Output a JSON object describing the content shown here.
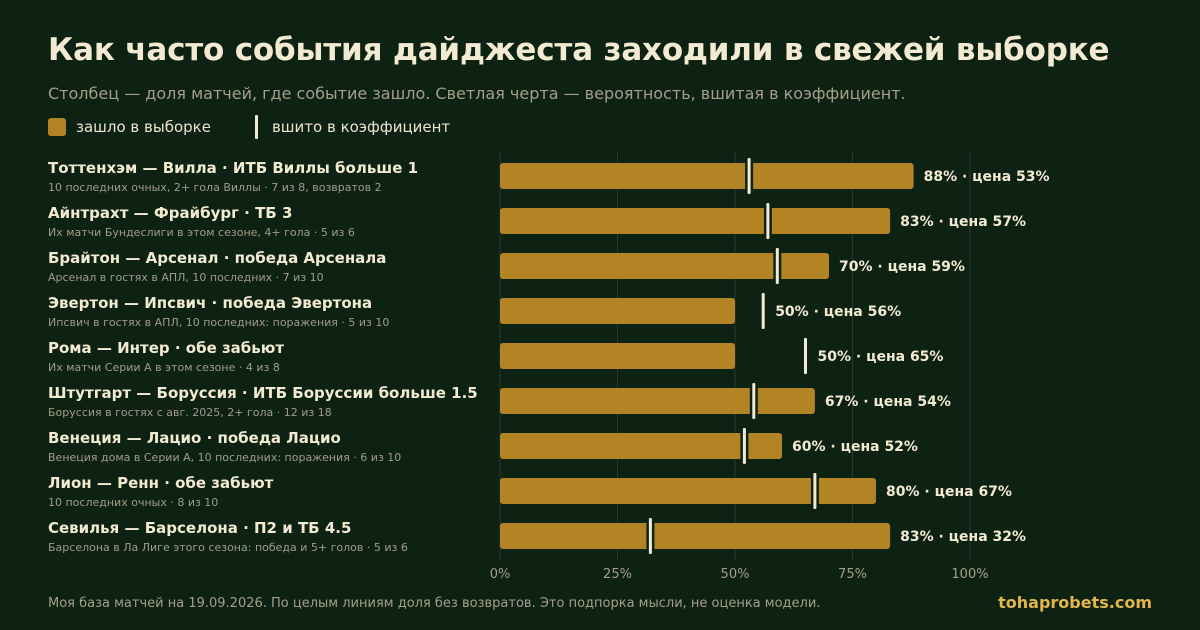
{
  "header": {
    "title": "Как часто события дайджеста заходили в свежей выборке",
    "subtitle": "Столбец — доля матчей, где событие зашло. Светлая черта — вероятность, вшитая в коэффициент."
  },
  "legend": {
    "bar_label": "зашло в выборке",
    "marker_label": "вшито в коэффициент"
  },
  "colors": {
    "background": "#0e2214",
    "bar": "#b38424",
    "marker": "#f3ead2",
    "grid": "#2a3a2e",
    "brand": "#e2b64a"
  },
  "chart_data": {
    "type": "bar",
    "orientation": "horizontal",
    "xlim": [
      0,
      100
    ],
    "x_ticks": [
      0,
      25,
      50,
      75,
      100
    ],
    "x_tick_labels": [
      "0%",
      "25%",
      "50%",
      "75%",
      "100%"
    ],
    "grid": true,
    "legend_position": "top-left",
    "series": [
      {
        "name": "зашло в выборке",
        "role": "bar"
      },
      {
        "name": "вшито в коэффициент",
        "role": "marker"
      }
    ],
    "rows": [
      {
        "label": "Тоттенхэм — Вилла · ИТБ Виллы больше 1",
        "sublabel": "10 последних очных, 2+ гола Виллы · 7 из 8, возвратов 2",
        "value": 88,
        "implied": 53,
        "value_label": "88% · цена 53%"
      },
      {
        "label": "Айнтрахт — Фрайбург · ТБ 3",
        "sublabel": "Их матчи Бундеслиги в этом сезоне, 4+ гола · 5 из 6",
        "value": 83,
        "implied": 57,
        "value_label": "83% · цена 57%"
      },
      {
        "label": "Брайтон — Арсенал · победа Арсенала",
        "sublabel": "Арсенал в гостях в АПЛ, 10 последних · 7 из 10",
        "value": 70,
        "implied": 59,
        "value_label": "70% · цена 59%"
      },
      {
        "label": "Эвертон — Ипсвич · победа Эвертона",
        "sublabel": "Ипсвич в гостях в АПЛ, 10 последних: поражения · 5 из 10",
        "value": 50,
        "implied": 56,
        "value_label": "50% · цена 56%"
      },
      {
        "label": "Рома — Интер · обе забьют",
        "sublabel": "Их матчи Серии А в этом сезоне · 4 из 8",
        "value": 50,
        "implied": 65,
        "value_label": "50% · цена 65%"
      },
      {
        "label": "Штутгарт — Боруссия · ИТБ Боруссии больше 1.5",
        "sublabel": "Боруссия в гостях с авг. 2025, 2+ гола · 12 из 18",
        "value": 67,
        "implied": 54,
        "value_label": "67% · цена 54%"
      },
      {
        "label": "Венеция — Лацио · победа Лацио",
        "sublabel": "Венеция дома в Серии А, 10 последних: поражения · 6 из 10",
        "value": 60,
        "implied": 52,
        "value_label": "60% · цена 52%"
      },
      {
        "label": "Лион — Ренн · обе забьют",
        "sublabel": "10 последних очных · 8 из 10",
        "value": 80,
        "implied": 67,
        "value_label": "80% · цена 67%"
      },
      {
        "label": "Севилья — Барселона · П2 и ТБ 4.5",
        "sublabel": "Барселона в Ла Лиге этого сезона: победа и 5+ голов · 5 из 6",
        "value": 83,
        "implied": 32,
        "value_label": "83% · цена 32%"
      }
    ]
  },
  "footer": {
    "note": "Моя база матчей на 19.09.2026. По целым линиям доля без возвратов. Это подпорка мысли, не оценка модели.",
    "brand": "tohaprobets.com"
  }
}
